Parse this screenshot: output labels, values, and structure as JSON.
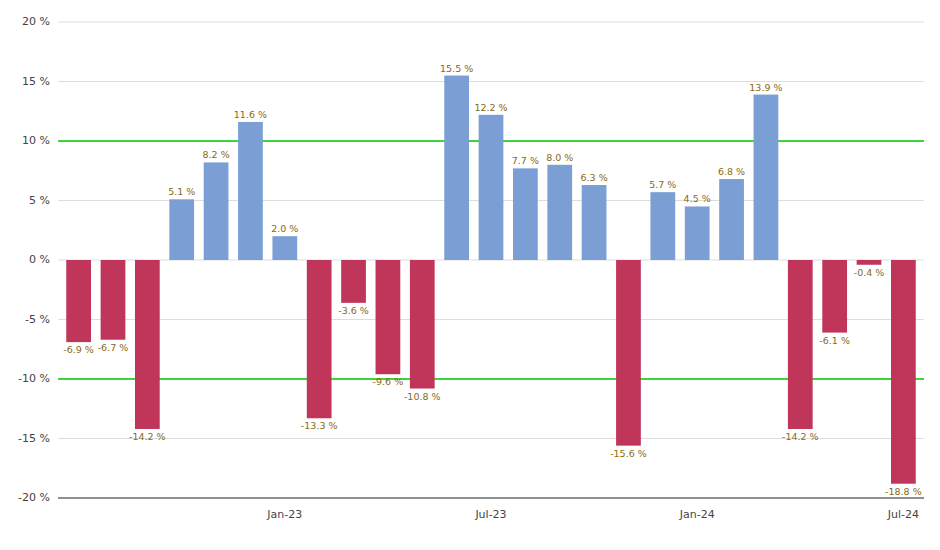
{
  "chart_data": {
    "type": "bar",
    "categories": [
      null,
      null,
      null,
      null,
      null,
      null,
      "Jan-23",
      null,
      null,
      null,
      null,
      null,
      "Jul-23",
      null,
      null,
      null,
      null,
      null,
      "Jan-24",
      null,
      null,
      null,
      null,
      null,
      "Jul-24"
    ],
    "values": [
      -6.9,
      -6.7,
      -14.2,
      5.1,
      8.2,
      11.6,
      2.0,
      -13.3,
      -3.6,
      -9.6,
      -10.8,
      15.5,
      12.2,
      7.7,
      8.0,
      6.3,
      -15.6,
      5.7,
      4.5,
      6.8,
      13.9,
      -14.2,
      -6.1,
      -0.4,
      -18.8
    ],
    "value_labels": [
      "-6.9 %",
      "-6.7 %",
      "-14.2 %",
      "5.1 %",
      "8.2 %",
      "11.6 %",
      "2.0 %",
      "-13.3 %",
      "-3.6 %",
      "-9.6 %",
      "-10.8 %",
      "15.5 %",
      "12.2 %",
      "7.7 %",
      "8.0 %",
      "6.3 %",
      "-15.6 %",
      "5.7 %",
      "4.5 %",
      "6.8 %",
      "13.9 %",
      "-14.2 %",
      "-6.1 %",
      "-0.4 %",
      "-18.8 %"
    ],
    "colors": [
      "#C0365A",
      "#C0365A",
      "#C0365A",
      "#7B9FD4",
      "#7B9FD4",
      "#7B9FD4",
      "#7B9FD4",
      "#C0365A",
      "#C0365A",
      "#C0365A",
      "#C0365A",
      "#7B9FD4",
      "#7B9FD4",
      "#7B9FD4",
      "#7B9FD4",
      "#7B9FD4",
      "#C0365A",
      "#7B9FD4",
      "#7B9FD4",
      "#7B9FD4",
      "#7B9FD4",
      "#C0365A",
      "#C0365A",
      "#C0365A",
      "#C0365A"
    ],
    "data_labels": true,
    "ylim": [
      -20,
      20
    ],
    "yticks": [
      {
        "value": -20,
        "label": "-20 %"
      },
      {
        "value": -15,
        "label": "-15 %"
      },
      {
        "value": -10,
        "label": "-10 %"
      },
      {
        "value": -5,
        "label": "-5 %"
      },
      {
        "value": 0,
        "label": "0 %"
      },
      {
        "value": 5,
        "label": "5 %"
      },
      {
        "value": 10,
        "label": "10 %"
      },
      {
        "value": 15,
        "label": "15 %"
      },
      {
        "value": 20,
        "label": "20 %"
      }
    ],
    "grid": true,
    "reference_lines": [
      {
        "value": -10,
        "color": "#00CC00"
      },
      {
        "value": 10,
        "color": "#00CC00"
      }
    ]
  }
}
